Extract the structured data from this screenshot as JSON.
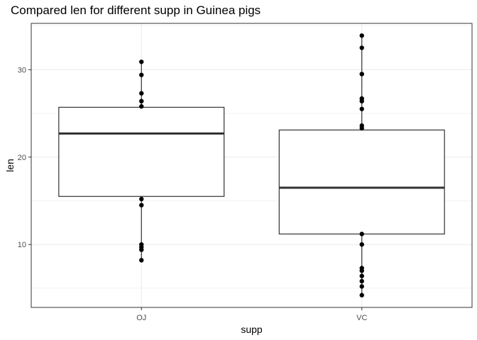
{
  "chart_data": {
    "type": "boxplot",
    "title": "Compared len for different supp in Guinea pigs",
    "xlabel": "supp",
    "ylabel": "len",
    "categories": [
      "OJ",
      "VC"
    ],
    "ylim": [
      2.8,
      35.3
    ],
    "yticks": [
      10,
      20,
      30
    ],
    "grid": true,
    "boxes": [
      {
        "category": "OJ",
        "lower_whisker": 8.2,
        "q1": 15.5,
        "median": 22.7,
        "q3": 25.7,
        "upper_whisker": 30.9
      },
      {
        "category": "VC",
        "lower_whisker": 4.2,
        "q1": 11.2,
        "median": 16.5,
        "q3": 23.1,
        "upper_whisker": 33.9
      }
    ],
    "points": [
      {
        "category": "OJ",
        "values": [
          8.2,
          9.4,
          9.7,
          10.0,
          14.5,
          15.2,
          25.8,
          26.4,
          27.3,
          29.4,
          30.9
        ]
      },
      {
        "category": "VC",
        "values": [
          4.2,
          5.2,
          5.8,
          6.4,
          7.0,
          7.3,
          10.0,
          11.2,
          23.3,
          23.6,
          25.5,
          26.4,
          26.7,
          29.5,
          32.5,
          33.9
        ]
      }
    ]
  }
}
